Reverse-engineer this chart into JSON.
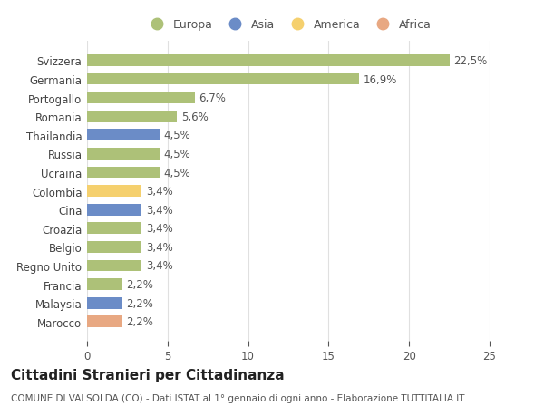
{
  "categories": [
    "Marocco",
    "Malaysia",
    "Francia",
    "Regno Unito",
    "Belgio",
    "Croazia",
    "Cina",
    "Colombia",
    "Ucraina",
    "Russia",
    "Thailandia",
    "Romania",
    "Portogallo",
    "Germania",
    "Svizzera"
  ],
  "values": [
    2.2,
    2.2,
    2.2,
    3.4,
    3.4,
    3.4,
    3.4,
    3.4,
    4.5,
    4.5,
    4.5,
    5.6,
    6.7,
    16.9,
    22.5
  ],
  "colors": [
    "#e8a882",
    "#6b8cc7",
    "#adc178",
    "#adc178",
    "#adc178",
    "#adc178",
    "#6b8cc7",
    "#f5d06e",
    "#adc178",
    "#adc178",
    "#6b8cc7",
    "#adc178",
    "#adc178",
    "#adc178",
    "#adc178"
  ],
  "labels": [
    "2,2%",
    "2,2%",
    "2,2%",
    "3,4%",
    "3,4%",
    "3,4%",
    "3,4%",
    "3,4%",
    "4,5%",
    "4,5%",
    "4,5%",
    "5,6%",
    "6,7%",
    "16,9%",
    "22,5%"
  ],
  "legend_labels": [
    "Europa",
    "Asia",
    "America",
    "Africa"
  ],
  "legend_colors": [
    "#adc178",
    "#6b8cc7",
    "#f5d06e",
    "#e8a882"
  ],
  "title": "Cittadini Stranieri per Cittadinanza",
  "subtitle": "COMUNE DI VALSOLDA (CO) - Dati ISTAT al 1° gennaio di ogni anno - Elaborazione TUTTITALIA.IT",
  "xlim": [
    0,
    25
  ],
  "xticks": [
    0,
    5,
    10,
    15,
    20,
    25
  ],
  "background_color": "#ffffff",
  "grid_color": "#e0e0e0",
  "bar_height": 0.62,
  "title_fontsize": 11,
  "subtitle_fontsize": 7.5,
  "tick_fontsize": 8.5,
  "label_fontsize": 8.5,
  "legend_fontsize": 9
}
